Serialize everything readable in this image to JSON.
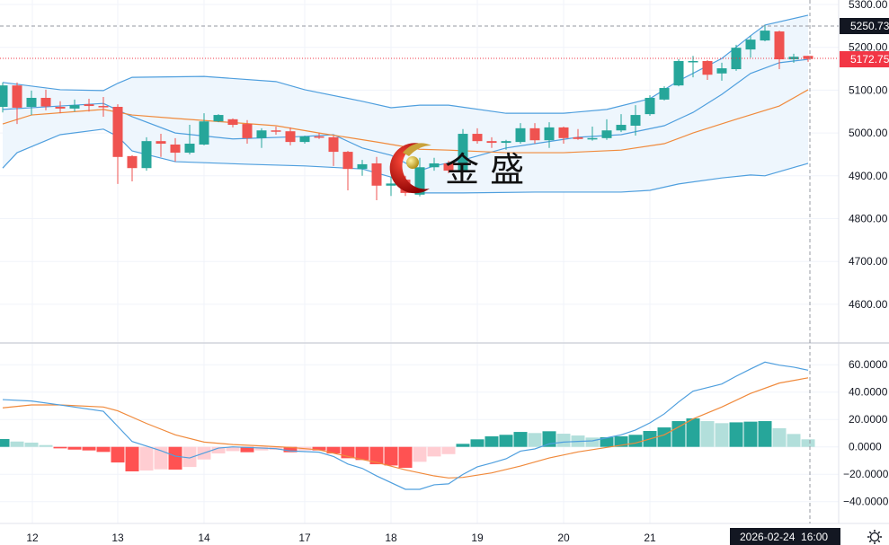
{
  "chart_data": [
    {
      "type": "candlestick",
      "pane": "price",
      "ylim": [
        4560,
        5310
      ],
      "grid": true,
      "y_ticks": [
        "5300.00",
        "5200.00",
        "5100.00",
        "5000.00",
        "4900.00",
        "4800.00",
        "4700.00",
        "4600.00"
      ],
      "y_tick_values": [
        5300,
        5200,
        5100,
        5000,
        4900,
        4800,
        4700,
        4600
      ],
      "x_ticks": [
        {
          "label": "12",
          "index": 2
        },
        {
          "label": "13",
          "index": 8
        },
        {
          "label": "14",
          "index": 14
        },
        {
          "label": "17",
          "index": 21
        },
        {
          "label": "18",
          "index": 27
        },
        {
          "label": "19",
          "index": 33
        },
        {
          "label": "20",
          "index": 39
        },
        {
          "label": "21",
          "index": 45
        }
      ],
      "ohlc": [
        [
          5061,
          5118,
          5048,
          5111
        ],
        [
          5111,
          5118,
          5021,
          5059
        ],
        [
          5061,
          5099,
          5042,
          5082
        ],
        [
          5082,
          5101,
          5053,
          5062
        ],
        [
          5061,
          5074,
          5046,
          5057
        ],
        [
          5057,
          5078,
          5050,
          5065
        ],
        [
          5067,
          5080,
          5050,
          5063
        ],
        [
          5063,
          5084,
          5038,
          5061
        ],
        [
          5061,
          5067,
          4881,
          4944
        ],
        [
          4946,
          4948,
          4887,
          4918
        ],
        [
          4918,
          4990,
          4912,
          4981
        ],
        [
          4981,
          4998,
          4944,
          4975
        ],
        [
          4973,
          4988,
          4933,
          4954
        ],
        [
          4954,
          5019,
          4950,
          4975
        ],
        [
          4973,
          5046,
          4971,
          5027
        ],
        [
          5027,
          5044,
          5025,
          5042
        ],
        [
          5032,
          5034,
          5013,
          5019
        ],
        [
          5021,
          5030,
          4975,
          4988
        ],
        [
          4988,
          5011,
          4965,
          5006
        ],
        [
          5006,
          5015,
          4996,
          5004
        ],
        [
          5004,
          5013,
          4971,
          4979
        ],
        [
          4979,
          4994,
          4975,
          4992
        ],
        [
          4992,
          5000,
          4986,
          4990
        ],
        [
          4990,
          4994,
          4923,
          4956
        ],
        [
          4956,
          4958,
          4866,
          4916
        ],
        [
          4916,
          4937,
          4900,
          4927
        ],
        [
          4929,
          4944,
          4843,
          4877
        ],
        [
          4877,
          4898,
          4853,
          4882
        ],
        [
          4891,
          4900,
          4853,
          4860
        ],
        [
          4856,
          4942,
          4852,
          4920
        ],
        [
          4920,
          4942,
          4912,
          4929
        ],
        [
          4929,
          4935,
          4906,
          4912
        ],
        [
          4912,
          5009,
          4906,
          4998
        ],
        [
          4998,
          5011,
          4975,
          4981
        ],
        [
          4981,
          4990,
          4965,
          4977
        ],
        [
          4977,
          4984,
          4961,
          4981
        ],
        [
          4979,
          5023,
          4975,
          5011
        ],
        [
          5011,
          5023,
          4975,
          4983
        ],
        [
          4983,
          5025,
          4965,
          5013
        ],
        [
          5013,
          5015,
          4975,
          4988
        ],
        [
          4990,
          5009,
          4984,
          4986
        ],
        [
          4986,
          5015,
          4982,
          4988
        ],
        [
          4988,
          5032,
          4984,
          5006
        ],
        [
          5006,
          5044,
          5002,
          5019
        ],
        [
          5017,
          5065,
          4994,
          5042
        ],
        [
          5044,
          5088,
          5040,
          5082
        ],
        [
          5078,
          5109,
          5076,
          5105
        ],
        [
          5111,
          5172,
          5109,
          5168
        ],
        [
          5166,
          5180,
          5130,
          5168
        ],
        [
          5168,
          5170,
          5124,
          5136
        ],
        [
          5139,
          5164,
          5122,
          5151
        ],
        [
          5149,
          5206,
          5145,
          5199
        ],
        [
          5195,
          5227,
          5176,
          5218
        ],
        [
          5216,
          5252,
          5214,
          5239
        ],
        [
          5237,
          5239,
          5149,
          5172
        ],
        [
          5172,
          5185,
          5164,
          5178
        ],
        [
          5180,
          5180,
          5166,
          5172.75
        ]
      ],
      "bollinger": {
        "upper": [
          [
            0,
            5118
          ],
          [
            4,
            5101
          ],
          [
            7,
            5099
          ],
          [
            8,
            5116
          ],
          [
            9,
            5130
          ],
          [
            14,
            5132
          ],
          [
            19,
            5120
          ],
          [
            21,
            5101
          ],
          [
            25,
            5074
          ],
          [
            27,
            5059
          ],
          [
            29,
            5065
          ],
          [
            31,
            5065
          ],
          [
            35,
            5046
          ],
          [
            39,
            5046
          ],
          [
            42,
            5055
          ],
          [
            45,
            5080
          ],
          [
            47,
            5122
          ],
          [
            50,
            5174
          ],
          [
            52,
            5227
          ],
          [
            53,
            5252
          ],
          [
            56,
            5275
          ]
        ],
        "middle": [
          [
            0,
            5055
          ],
          [
            4,
            5063
          ],
          [
            7,
            5069
          ],
          [
            9,
            5038
          ],
          [
            12,
            5000
          ],
          [
            16,
            4986
          ],
          [
            21,
            4992
          ],
          [
            23,
            4996
          ],
          [
            25,
            4965
          ],
          [
            27,
            4948
          ],
          [
            29,
            4912
          ],
          [
            30,
            4923
          ],
          [
            32,
            4937
          ],
          [
            35,
            4965
          ],
          [
            37,
            4975
          ],
          [
            40,
            4990
          ],
          [
            43,
            4996
          ],
          [
            46,
            5017
          ],
          [
            48,
            5048
          ],
          [
            50,
            5090
          ],
          [
            52,
            5139
          ],
          [
            54,
            5164
          ],
          [
            56,
            5172
          ]
        ],
        "lower": [
          [
            0,
            4918
          ],
          [
            1,
            4954
          ],
          [
            4,
            4996
          ],
          [
            7,
            5009
          ],
          [
            8,
            4992
          ],
          [
            9,
            4958
          ],
          [
            12,
            4933
          ],
          [
            17,
            4927
          ],
          [
            21,
            4923
          ],
          [
            25,
            4916
          ],
          [
            27,
            4897
          ],
          [
            29,
            4860
          ],
          [
            32,
            4860
          ],
          [
            37,
            4862
          ],
          [
            43,
            4862
          ],
          [
            45,
            4866
          ],
          [
            47,
            4881
          ],
          [
            50,
            4895
          ],
          [
            52,
            4902
          ],
          [
            53,
            4900
          ],
          [
            56,
            4929
          ]
        ]
      },
      "moving_average": [
        [
          0,
          5021
        ],
        [
          2,
          5042
        ],
        [
          7,
          5055
        ],
        [
          9,
          5042
        ],
        [
          12,
          5034
        ],
        [
          19,
          5017
        ],
        [
          22,
          5000
        ],
        [
          26,
          4979
        ],
        [
          29,
          4962
        ],
        [
          31,
          4960
        ],
        [
          35,
          4954
        ],
        [
          39,
          4954
        ],
        [
          43,
          4960
        ],
        [
          46,
          4975
        ],
        [
          48,
          5000
        ],
        [
          51,
          5032
        ],
        [
          54,
          5063
        ],
        [
          56,
          5101
        ]
      ],
      "price_labels": {
        "crosshair": "5250.73",
        "last": "5172.75"
      },
      "crosshair_value": 5250.73,
      "last_value": 5172.75
    },
    {
      "type": "macd",
      "pane": "indicator",
      "ylim": [
        -50,
        68
      ],
      "y_ticks": [
        "60.0000",
        "40.0000",
        "20.0000",
        "0.0000",
        "−20.0000",
        "−40.0000"
      ],
      "y_tick_values": [
        60,
        40,
        20,
        0,
        -20,
        -40
      ],
      "histogram": [
        5.7,
        3.9,
        3.1,
        1.3,
        -1.1,
        -2.0,
        -2.6,
        -3.7,
        -11.4,
        -17.9,
        -17.3,
        -16.4,
        -16.6,
        -14.7,
        -9.2,
        -4.8,
        -3.1,
        -3.9,
        -2.6,
        -2.2,
        -3.9,
        -2.6,
        -2.6,
        -4.8,
        -8.3,
        -9.6,
        -12.7,
        -13.6,
        -15.3,
        -10.9,
        -7.0,
        -5.3,
        2.2,
        5.5,
        7.7,
        8.8,
        10.9,
        10.1,
        11.4,
        9.6,
        8.3,
        6.8,
        7.0,
        7.7,
        8.8,
        11.6,
        14.2,
        18.8,
        20.8,
        18.8,
        17.3,
        17.9,
        18.4,
        18.8,
        13.6,
        9.4,
        5.5
      ],
      "macd": [
        [
          0,
          34.5
        ],
        [
          2,
          33.5
        ],
        [
          4,
          30.6
        ],
        [
          7,
          26.0
        ],
        [
          9,
          3.9
        ],
        [
          11,
          -2.8
        ],
        [
          12,
          -6.8
        ],
        [
          13,
          -8.1
        ],
        [
          15,
          -0.9
        ],
        [
          16,
          0
        ],
        [
          19,
          -1.3
        ],
        [
          20,
          -3.0
        ],
        [
          22,
          -3.9
        ],
        [
          23,
          -7.0
        ],
        [
          24,
          -12.5
        ],
        [
          25,
          -15.7
        ],
        [
          26,
          -21.2
        ],
        [
          28,
          -31.0
        ],
        [
          29,
          -31.0
        ],
        [
          30,
          -27.7
        ],
        [
          31,
          -27.0
        ],
        [
          32,
          -20.1
        ],
        [
          33,
          -14.6
        ],
        [
          34,
          -11.8
        ],
        [
          35,
          -8.7
        ],
        [
          36,
          -3.1
        ],
        [
          37,
          -1.5
        ],
        [
          38,
          2.2
        ],
        [
          39,
          3.5
        ],
        [
          40,
          4.0
        ],
        [
          41,
          4.4
        ],
        [
          42,
          6.6
        ],
        [
          43,
          8.8
        ],
        [
          44,
          12.3
        ],
        [
          45,
          17.5
        ],
        [
          46,
          24.1
        ],
        [
          47,
          32.8
        ],
        [
          48,
          40.7
        ],
        [
          49,
          43.3
        ],
        [
          50,
          45.9
        ],
        [
          51,
          51.6
        ],
        [
          52,
          56.9
        ],
        [
          53,
          61.9
        ],
        [
          54,
          59.7
        ],
        [
          55,
          58.2
        ],
        [
          56,
          56.0
        ]
      ],
      "signal": [
        [
          0,
          28.5
        ],
        [
          2,
          30.6
        ],
        [
          4,
          30.6
        ],
        [
          7,
          29.1
        ],
        [
          8,
          26.3
        ],
        [
          10,
          17.1
        ],
        [
          12,
          8.8
        ],
        [
          14,
          3.5
        ],
        [
          16,
          1.7
        ],
        [
          18,
          0.7
        ],
        [
          20,
          -0.4
        ],
        [
          22,
          -2.2
        ],
        [
          24,
          -7.0
        ],
        [
          26,
          -11.4
        ],
        [
          28,
          -16.8
        ],
        [
          29,
          -19.0
        ],
        [
          30,
          -21.2
        ],
        [
          31,
          -22.7
        ],
        [
          32,
          -22.3
        ],
        [
          34,
          -19.0
        ],
        [
          36,
          -14.0
        ],
        [
          38,
          -8.1
        ],
        [
          40,
          -3.7
        ],
        [
          42,
          -0.4
        ],
        [
          44,
          2.8
        ],
        [
          46,
          8.8
        ],
        [
          48,
          20.4
        ],
        [
          50,
          29.1
        ],
        [
          52,
          39.0
        ],
        [
          54,
          46.6
        ],
        [
          56,
          50.4
        ]
      ]
    }
  ],
  "time_axis": {
    "crosshair_label": "2026-02-24  16:00"
  },
  "logo": {
    "text": "金 盛"
  },
  "colors": {
    "up": "#26a69a",
    "down": "#ef5350",
    "hist_up_strong": "#26a69a",
    "hist_up_weak": "#b2dfdb",
    "hist_down_strong": "#ff5252",
    "hist_down_weak": "#ffcdd2",
    "band": "#4f9fde",
    "band_fill": "#eef6fd",
    "ma": "#f08a3c",
    "macd": "#4f9fde",
    "signal": "#f08a3c",
    "label_dark": "#131722",
    "label_last": "#f23645"
  },
  "icons": {
    "settings": "gear-icon"
  }
}
